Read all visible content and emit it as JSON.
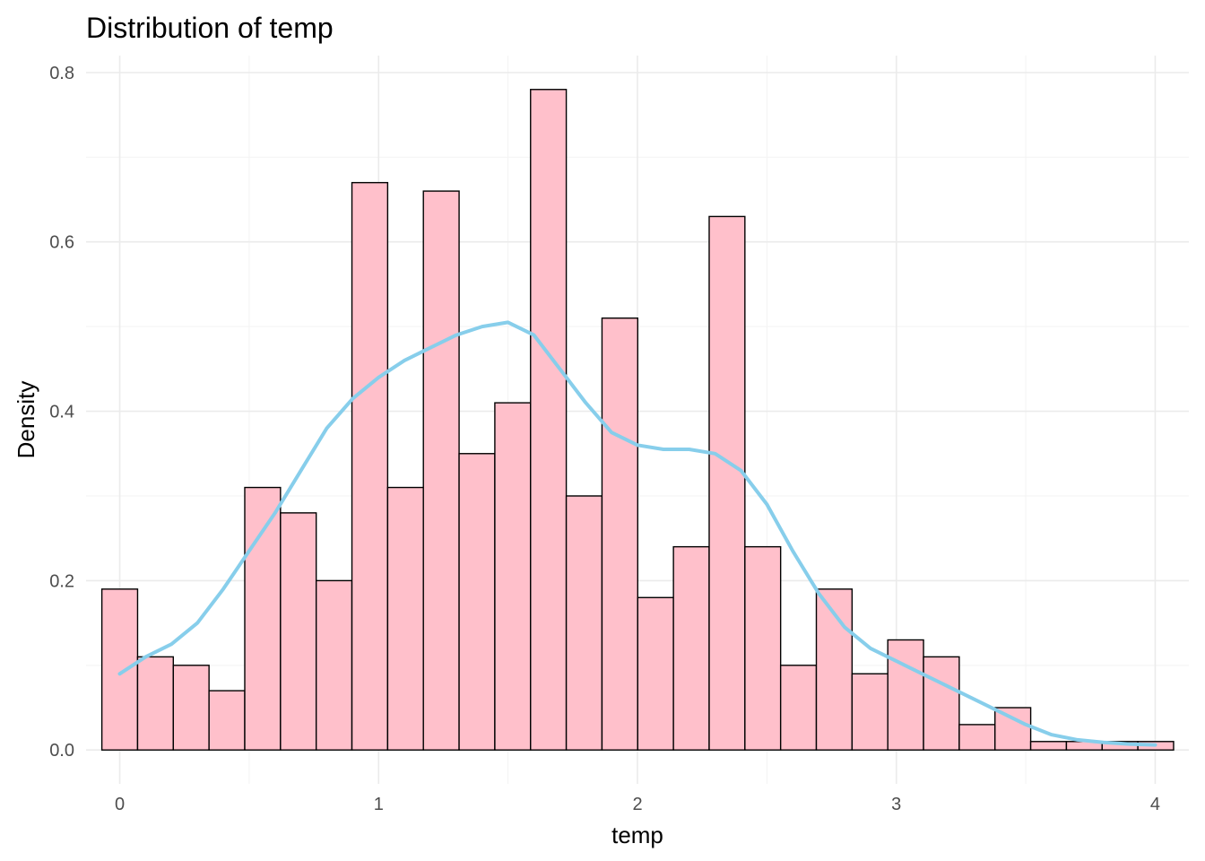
{
  "chart_data": {
    "type": "bar",
    "title": "Distribution of temp",
    "xlabel": "temp",
    "ylabel": "Density",
    "xlim": [
      -0.13,
      4.13
    ],
    "ylim": [
      -0.04,
      0.82
    ],
    "grid": true,
    "x_ticks": [
      0,
      1,
      2,
      3,
      4
    ],
    "y_ticks": [
      0.0,
      0.2,
      0.4,
      0.6,
      0.8
    ],
    "x_tick_labels": [
      "0",
      "1",
      "2",
      "3",
      "4"
    ],
    "y_tick_labels": [
      "0.0",
      "0.2",
      "0.4",
      "0.6",
      "0.8"
    ],
    "bin_width": 0.138,
    "bin_start": -0.069,
    "bars": [
      0.19,
      0.11,
      0.1,
      0.07,
      0.31,
      0.28,
      0.2,
      0.67,
      0.31,
      0.66,
      0.35,
      0.41,
      0.78,
      0.3,
      0.51,
      0.18,
      0.24,
      0.63,
      0.24,
      0.1,
      0.19,
      0.09,
      0.13,
      0.11,
      0.03,
      0.05,
      0.01,
      0.01,
      0.01,
      0.01
    ],
    "density_curve": {
      "x": [
        0.0,
        0.1,
        0.2,
        0.3,
        0.4,
        0.5,
        0.6,
        0.7,
        0.8,
        0.9,
        1.0,
        1.1,
        1.2,
        1.3,
        1.4,
        1.5,
        1.6,
        1.7,
        1.8,
        1.9,
        2.0,
        2.1,
        2.2,
        2.3,
        2.4,
        2.5,
        2.6,
        2.7,
        2.8,
        2.9,
        3.0,
        3.1,
        3.2,
        3.3,
        3.4,
        3.5,
        3.6,
        3.7,
        3.8,
        3.9,
        4.0
      ],
      "y": [
        0.09,
        0.11,
        0.125,
        0.15,
        0.19,
        0.235,
        0.28,
        0.33,
        0.38,
        0.415,
        0.44,
        0.46,
        0.475,
        0.49,
        0.5,
        0.505,
        0.49,
        0.45,
        0.41,
        0.375,
        0.36,
        0.355,
        0.355,
        0.35,
        0.33,
        0.29,
        0.235,
        0.185,
        0.145,
        0.12,
        0.105,
        0.09,
        0.075,
        0.06,
        0.045,
        0.03,
        0.018,
        0.012,
        0.009,
        0.007,
        0.006
      ]
    },
    "colors": {
      "bar_fill": "#FFC0CB",
      "bar_stroke": "#000000",
      "curve": "#87CEEB",
      "grid_major": "#EBEBEB",
      "grid_minor": "#F3F3F3",
      "tick_text": "#4D4D4D",
      "text": "#000000"
    }
  }
}
